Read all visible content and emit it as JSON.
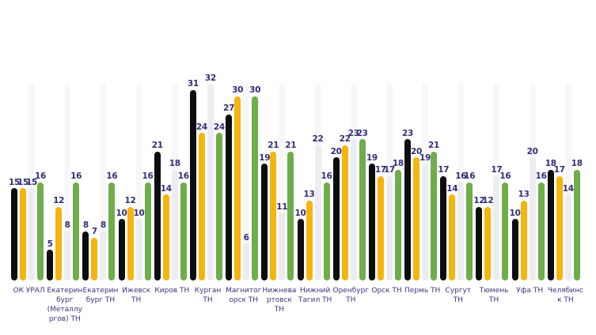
{
  "chart_data": {
    "type": "bar",
    "title": "",
    "xlabel": "",
    "ylabel": "",
    "ylim": [
      0,
      32
    ],
    "grid": false,
    "legend": false,
    "background": "#ffffff",
    "value_label_color": "#322e75",
    "axis_label_color": "#39347e",
    "categories": [
      "ОК УРАЛ",
      "Екатеринбург (Металлургов) ТН",
      "Екатеринбург ТН",
      "Ижевск ТН",
      "Киров ТН",
      "Курган ТН",
      "Магнитогорск ТН",
      "Нижневартовск ТН",
      "Нижний Тагил ТН",
      "Оренбург ТН",
      "Орск ТН",
      "Пермь ТН",
      "Сургут ТН",
      "Тюмень ТН",
      "Уфа ТН",
      "Челябинск ТН"
    ],
    "series": [
      {
        "name": "black",
        "color": "#0d0d10",
        "values": [
          15,
          5,
          8,
          10,
          21,
          31,
          27,
          19,
          10,
          20,
          19,
          23,
          17,
          12,
          10,
          18
        ]
      },
      {
        "name": "yellow",
        "color": "#f6b40f",
        "values": [
          15,
          12,
          7,
          12,
          14,
          24,
          30,
          21,
          13,
          22,
          17,
          20,
          14,
          12,
          13,
          17
        ]
      },
      {
        "name": "gray",
        "color": "#ececf2",
        "track_color": "#f7f7fa",
        "values": [
          15,
          8,
          8,
          10,
          18,
          32,
          6,
          11,
          22,
          23,
          17,
          19,
          16,
          17,
          20,
          14
        ]
      },
      {
        "name": "green",
        "color": "#6ead49",
        "values": [
          16,
          16,
          16,
          16,
          16,
          24,
          30,
          21,
          16,
          23,
          18,
          21,
          16,
          16,
          16,
          18
        ]
      }
    ]
  }
}
